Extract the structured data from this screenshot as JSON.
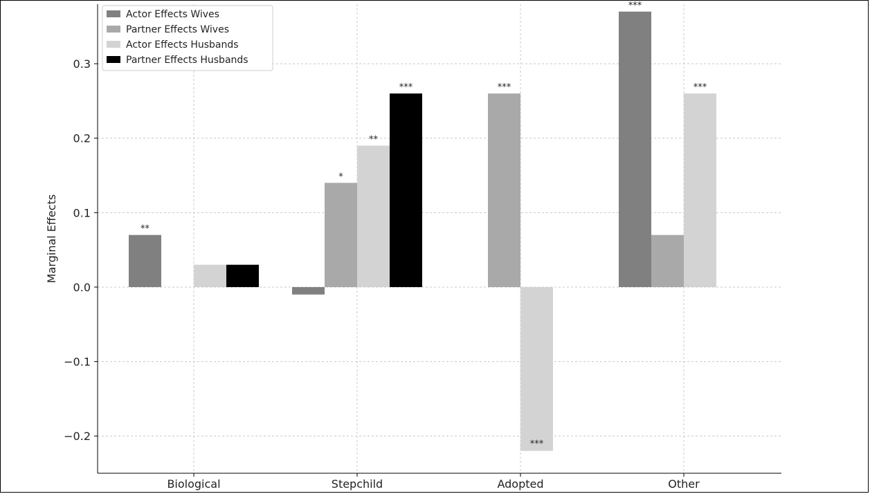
{
  "chart_data": {
    "type": "bar",
    "title": "",
    "xlabel": "",
    "ylabel": "Marginal Effects",
    "categories": [
      "Biological",
      "Stepchild",
      "Adopted",
      "Other"
    ],
    "ylim": [
      -0.25,
      0.38
    ],
    "yticks": [
      -0.2,
      -0.1,
      0.0,
      0.1,
      0.2,
      0.3
    ],
    "ytick_labels": [
      "−0.2",
      "−0.1",
      "0.0",
      "0.1",
      "0.2",
      "0.3"
    ],
    "grid": true,
    "legend_position": "top-left",
    "series": [
      {
        "name": "Actor Effects Wives",
        "color": "#808080",
        "values": [
          0.07,
          -0.01,
          0.0,
          0.37
        ],
        "significance": [
          "**",
          "",
          "",
          "***"
        ]
      },
      {
        "name": "Partner Effects Wives",
        "color": "#a9a9a9",
        "values": [
          0.0,
          0.14,
          0.26,
          0.07
        ],
        "significance": [
          "",
          "*",
          "***",
          ""
        ]
      },
      {
        "name": "Actor Effects Husbands",
        "color": "#d3d3d3",
        "values": [
          0.03,
          0.19,
          -0.22,
          0.26
        ],
        "significance": [
          "",
          "**",
          "***",
          "***"
        ]
      },
      {
        "name": "Partner Effects Husbands",
        "color": "#000000",
        "values": [
          0.03,
          0.26,
          0.0,
          0.0
        ],
        "significance": [
          "",
          "***",
          "",
          ""
        ]
      }
    ]
  }
}
